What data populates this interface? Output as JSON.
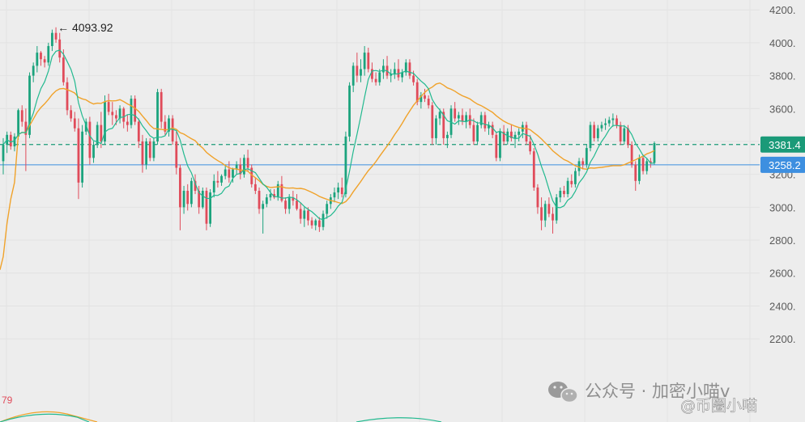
{
  "chart_data": {
    "type": "candlestick",
    "title": "",
    "ylim": [
      1950,
      4260
    ],
    "y_ticks": [
      2200,
      2400,
      2600,
      2800,
      3000,
      3200,
      3400,
      3600,
      3800,
      4000,
      4200
    ],
    "y_tick_labels": [
      "2200.",
      "2400.",
      "2600.",
      "2800.",
      "3000.",
      "3200.",
      "3400.",
      "3600.",
      "3800.",
      "4000.",
      "4200."
    ],
    "grid": true,
    "high_annotation": {
      "label": "← 4093.92",
      "value": 4093.92
    },
    "current_price": {
      "label": "3381.4",
      "value": 3381.4,
      "color": "#1a9a78"
    },
    "crosshair_price": {
      "label": "3258.2",
      "value": 3258.2,
      "color": "#3d8fe0"
    },
    "indicator_label": "79",
    "colors": {
      "up": "#1ba37d",
      "down": "#e04b5a",
      "ma_fast": "#22b98f",
      "ma_slow": "#f0a22a",
      "background": "#ededed"
    },
    "candles": [
      [
        3280,
        3420,
        3200,
        3380
      ],
      [
        3380,
        3460,
        3330,
        3440
      ],
      [
        3440,
        3460,
        3350,
        3370
      ],
      [
        3370,
        3450,
        3340,
        3430
      ],
      [
        3430,
        3600,
        3410,
        3590
      ],
      [
        3590,
        3620,
        3490,
        3520
      ],
      [
        3520,
        3600,
        3220,
        3440
      ],
      [
        3440,
        3820,
        3420,
        3800
      ],
      [
        3800,
        3880,
        3760,
        3860
      ],
      [
        3860,
        3980,
        3820,
        3940
      ],
      [
        3940,
        3950,
        3860,
        3900
      ],
      [
        3900,
        3920,
        3850,
        3880
      ],
      [
        3880,
        4000,
        3860,
        3980
      ],
      [
        3980,
        4080,
        3950,
        4060
      ],
      [
        4060,
        4094,
        4000,
        4020
      ],
      [
        4020,
        4060,
        3880,
        3910
      ],
      [
        3910,
        3960,
        3740,
        3760
      ],
      [
        3760,
        3790,
        3560,
        3590
      ],
      [
        3590,
        3620,
        3520,
        3540
      ],
      [
        3540,
        3580,
        3460,
        3480
      ],
      [
        3480,
        3540,
        3050,
        3150
      ],
      [
        3150,
        3500,
        3120,
        3460
      ],
      [
        3460,
        3540,
        3440,
        3520
      ],
      [
        3520,
        3550,
        3260,
        3300
      ],
      [
        3300,
        3400,
        3270,
        3380
      ],
      [
        3380,
        3520,
        3360,
        3500
      ],
      [
        3500,
        3580,
        3360,
        3400
      ],
      [
        3400,
        3680,
        3380,
        3640
      ],
      [
        3640,
        3690,
        3560,
        3580
      ],
      [
        3580,
        3640,
        3500,
        3560
      ],
      [
        3560,
        3590,
        3500,
        3540
      ],
      [
        3540,
        3620,
        3510,
        3600
      ],
      [
        3600,
        3610,
        3480,
        3520
      ],
      [
        3520,
        3560,
        3460,
        3500
      ],
      [
        3500,
        3680,
        3480,
        3660
      ],
      [
        3660,
        3680,
        3500,
        3520
      ],
      [
        3520,
        3540,
        3360,
        3400
      ],
      [
        3400,
        3440,
        3210,
        3260
      ],
      [
        3260,
        3420,
        3230,
        3400
      ],
      [
        3400,
        3420,
        3280,
        3300
      ],
      [
        3300,
        3420,
        3280,
        3400
      ],
      [
        3400,
        3720,
        3380,
        3700
      ],
      [
        3700,
        3720,
        3480,
        3520
      ],
      [
        3520,
        3560,
        3440,
        3460
      ],
      [
        3460,
        3560,
        3430,
        3540
      ],
      [
        3540,
        3560,
        3380,
        3400
      ],
      [
        3400,
        3460,
        3200,
        3240
      ],
      [
        3240,
        3260,
        2860,
        3000
      ],
      [
        3000,
        3130,
        2960,
        3100
      ],
      [
        3100,
        3140,
        2980,
        3020
      ],
      [
        3020,
        3180,
        3000,
        3160
      ],
      [
        3160,
        3200,
        3080,
        3100
      ],
      [
        3100,
        3130,
        2960,
        3000
      ],
      [
        3000,
        3120,
        2990,
        3100
      ],
      [
        3100,
        3120,
        2860,
        2900
      ],
      [
        2900,
        3110,
        2880,
        3090
      ],
      [
        3090,
        3200,
        3060,
        3160
      ],
      [
        3160,
        3220,
        3120,
        3150
      ],
      [
        3150,
        3200,
        3130,
        3190
      ],
      [
        3190,
        3260,
        3170,
        3230
      ],
      [
        3230,
        3280,
        3150,
        3180
      ],
      [
        3180,
        3240,
        3150,
        3230
      ],
      [
        3230,
        3280,
        3200,
        3260
      ],
      [
        3260,
        3300,
        3170,
        3200
      ],
      [
        3200,
        3320,
        3180,
        3300
      ],
      [
        3300,
        3350,
        3220,
        3240
      ],
      [
        3240,
        3260,
        3120,
        3140
      ],
      [
        3140,
        3180,
        3080,
        3100
      ],
      [
        3100,
        3120,
        2960,
        2990
      ],
      [
        2990,
        3040,
        2840,
        3020
      ],
      [
        3020,
        3080,
        3000,
        3060
      ],
      [
        3060,
        3110,
        3040,
        3080
      ],
      [
        3080,
        3110,
        3050,
        3060
      ],
      [
        3060,
        3160,
        3040,
        3140
      ],
      [
        3140,
        3190,
        3030,
        3040
      ],
      [
        3040,
        3060,
        2960,
        2990
      ],
      [
        2990,
        3080,
        2960,
        3060
      ],
      [
        3060,
        3100,
        3010,
        3040
      ],
      [
        3040,
        3080,
        2980,
        2990
      ],
      [
        2990,
        3030,
        2900,
        2930
      ],
      [
        2930,
        3000,
        2880,
        2980
      ],
      [
        2980,
        3000,
        2890,
        2920
      ],
      [
        2920,
        2940,
        2870,
        2890
      ],
      [
        2890,
        2930,
        2860,
        2920
      ],
      [
        2920,
        2940,
        2850,
        2880
      ],
      [
        2880,
        2980,
        2860,
        2960
      ],
      [
        2960,
        3040,
        2930,
        3020
      ],
      [
        3020,
        3080,
        2990,
        3060
      ],
      [
        3060,
        3120,
        3030,
        3090
      ],
      [
        3090,
        3150,
        3050,
        3120
      ],
      [
        3120,
        3180,
        3060,
        3080
      ],
      [
        3080,
        3460,
        3060,
        3430
      ],
      [
        3430,
        3760,
        3400,
        3740
      ],
      [
        3740,
        3880,
        3700,
        3860
      ],
      [
        3860,
        3940,
        3760,
        3800
      ],
      [
        3800,
        3900,
        3760,
        3840
      ],
      [
        3840,
        3980,
        3800,
        3940
      ],
      [
        3940,
        3970,
        3820,
        3840
      ],
      [
        3840,
        3880,
        3760,
        3780
      ],
      [
        3780,
        3820,
        3740,
        3760
      ],
      [
        3760,
        3840,
        3740,
        3820
      ],
      [
        3820,
        3900,
        3780,
        3860
      ],
      [
        3860,
        3920,
        3780,
        3800
      ],
      [
        3800,
        3840,
        3760,
        3810
      ],
      [
        3810,
        3880,
        3780,
        3840
      ],
      [
        3840,
        3900,
        3770,
        3790
      ],
      [
        3790,
        3840,
        3760,
        3820
      ],
      [
        3820,
        3900,
        3800,
        3880
      ],
      [
        3880,
        3900,
        3780,
        3800
      ],
      [
        3800,
        3830,
        3740,
        3760
      ],
      [
        3760,
        3780,
        3620,
        3640
      ],
      [
        3640,
        3700,
        3600,
        3680
      ],
      [
        3680,
        3720,
        3640,
        3660
      ],
      [
        3660,
        3680,
        3600,
        3620
      ],
      [
        3620,
        3640,
        3380,
        3420
      ],
      [
        3420,
        3560,
        3380,
        3540
      ],
      [
        3540,
        3600,
        3500,
        3580
      ],
      [
        3580,
        3600,
        3380,
        3420
      ],
      [
        3420,
        3460,
        3360,
        3440
      ],
      [
        3440,
        3620,
        3420,
        3600
      ],
      [
        3600,
        3640,
        3520,
        3540
      ],
      [
        3540,
        3580,
        3500,
        3560
      ],
      [
        3560,
        3600,
        3500,
        3520
      ],
      [
        3520,
        3580,
        3480,
        3560
      ],
      [
        3560,
        3600,
        3480,
        3500
      ],
      [
        3500,
        3540,
        3380,
        3400
      ],
      [
        3400,
        3520,
        3380,
        3500
      ],
      [
        3500,
        3580,
        3480,
        3560
      ],
      [
        3560,
        3580,
        3460,
        3480
      ],
      [
        3480,
        3520,
        3440,
        3500
      ],
      [
        3500,
        3520,
        3420,
        3440
      ],
      [
        3440,
        3460,
        3280,
        3300
      ],
      [
        3300,
        3480,
        3280,
        3460
      ],
      [
        3460,
        3500,
        3380,
        3400
      ],
      [
        3400,
        3480,
        3380,
        3460
      ],
      [
        3460,
        3500,
        3400,
        3420
      ],
      [
        3420,
        3460,
        3360,
        3440
      ],
      [
        3440,
        3480,
        3400,
        3460
      ],
      [
        3460,
        3520,
        3420,
        3500
      ],
      [
        3500,
        3520,
        3380,
        3400
      ],
      [
        3400,
        3440,
        3320,
        3340
      ],
      [
        3340,
        3360,
        3100,
        3120
      ],
      [
        3120,
        3140,
        2960,
        3000
      ],
      [
        3000,
        3060,
        2860,
        2920
      ],
      [
        2920,
        3040,
        2880,
        3020
      ],
      [
        3020,
        3060,
        2940,
        2960
      ],
      [
        2960,
        3000,
        2840,
        2920
      ],
      [
        2920,
        3080,
        2900,
        3060
      ],
      [
        3060,
        3120,
        3030,
        3100
      ],
      [
        3100,
        3130,
        3060,
        3080
      ],
      [
        3080,
        3180,
        3060,
        3160
      ],
      [
        3160,
        3200,
        3120,
        3140
      ],
      [
        3140,
        3240,
        3120,
        3220
      ],
      [
        3220,
        3300,
        3190,
        3280
      ],
      [
        3280,
        3300,
        3230,
        3260
      ],
      [
        3260,
        3380,
        3240,
        3360
      ],
      [
        3360,
        3520,
        3340,
        3500
      ],
      [
        3500,
        3520,
        3400,
        3420
      ],
      [
        3420,
        3500,
        3400,
        3480
      ],
      [
        3480,
        3520,
        3460,
        3500
      ],
      [
        3500,
        3540,
        3470,
        3510
      ],
      [
        3510,
        3550,
        3490,
        3530
      ],
      [
        3530,
        3570,
        3490,
        3540
      ],
      [
        3540,
        3560,
        3480,
        3500
      ],
      [
        3500,
        3520,
        3380,
        3400
      ],
      [
        3400,
        3500,
        3380,
        3480
      ],
      [
        3480,
        3500,
        3360,
        3380
      ],
      [
        3380,
        3400,
        3240,
        3260
      ],
      [
        3260,
        3280,
        3100,
        3160
      ],
      [
        3160,
        3320,
        3140,
        3300
      ],
      [
        3300,
        3320,
        3200,
        3220
      ],
      [
        3220,
        3300,
        3200,
        3280
      ],
      [
        3280,
        3300,
        3240,
        3270
      ],
      [
        3270,
        3400,
        3260,
        3390
      ]
    ]
  },
  "watermark": {
    "line1": "公众号 · 加密小喵v",
    "line2": "@币圈小喵"
  }
}
